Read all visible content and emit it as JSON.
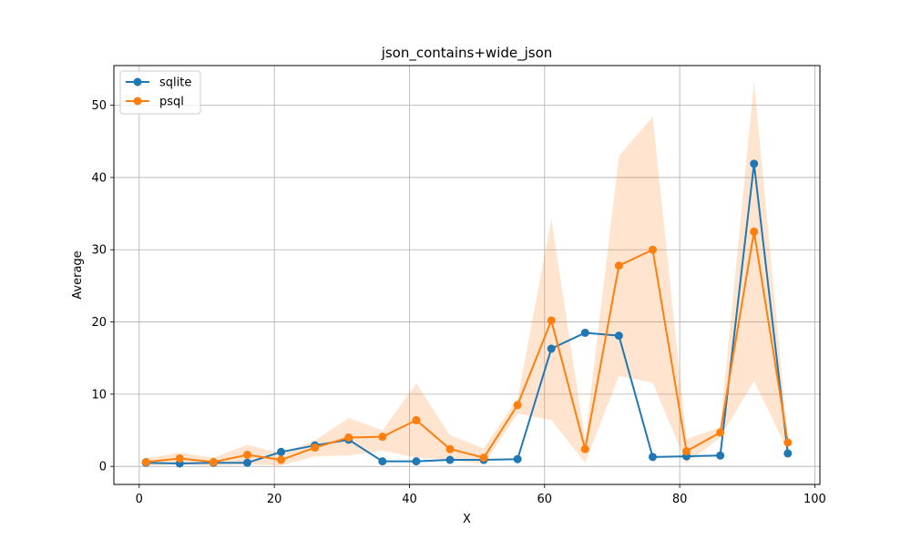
{
  "chart_data": {
    "type": "line",
    "title": "json_contains+wide_json",
    "xlabel": "X",
    "ylabel": "Average",
    "xlim": [
      -3.75,
      100.75
    ],
    "ylim": [
      -2.5,
      55.5
    ],
    "xticks": [
      0,
      20,
      40,
      60,
      80,
      100
    ],
    "yticks": [
      0,
      10,
      20,
      30,
      40,
      50
    ],
    "grid": true,
    "legend_position": "top-left",
    "x": [
      1,
      6,
      11,
      16,
      21,
      26,
      31,
      36,
      41,
      46,
      51,
      56,
      61,
      66,
      71,
      76,
      81,
      86,
      91,
      96
    ],
    "series": [
      {
        "name": "sqlite",
        "color": "#1f77b4",
        "values": [
          0.5,
          0.4,
          0.5,
          0.5,
          2.0,
          2.9,
          3.7,
          0.7,
          0.7,
          0.9,
          0.9,
          1.0,
          16.3,
          18.5,
          18.1,
          1.3,
          1.4,
          1.5,
          41.9,
          1.8
        ],
        "band_lower": null,
        "band_upper": null
      },
      {
        "name": "psql",
        "color": "#ff7f0e",
        "values": [
          0.6,
          1.1,
          0.6,
          1.6,
          0.9,
          2.6,
          4.0,
          4.1,
          6.4,
          2.4,
          1.2,
          8.5,
          20.2,
          2.4,
          27.8,
          30.0,
          2.1,
          4.7,
          32.5,
          3.3
        ],
        "band_lower": [
          0.1,
          0.3,
          0.1,
          0.3,
          0.1,
          1.4,
          1.5,
          2.2,
          1.2,
          0.9,
          0.3,
          7.3,
          6.4,
          0.5,
          12.5,
          11.6,
          0.4,
          4.0,
          11.8,
          2.2
        ],
        "band_upper": [
          1.1,
          1.9,
          1.2,
          3.0,
          1.8,
          3.6,
          6.7,
          5.0,
          11.5,
          4.3,
          2.5,
          9.4,
          34.2,
          3.6,
          43.0,
          48.4,
          3.8,
          5.4,
          53.3,
          4.0
        ]
      }
    ]
  }
}
